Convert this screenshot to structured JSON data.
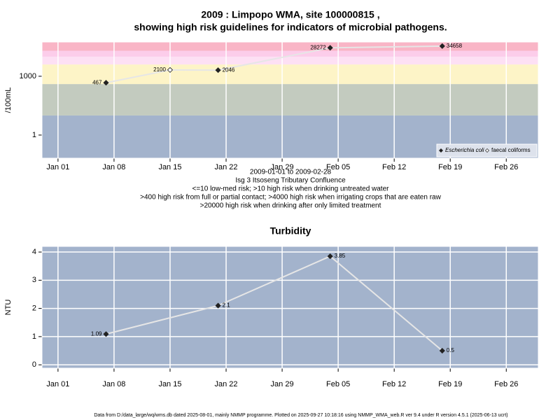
{
  "chart_data": [
    {
      "type": "line",
      "title": [
        "2009 : Limpopo WMA, site 100000815 ,",
        "showing high risk guidelines for indicators of microbial pathogens."
      ],
      "y_label": "/100mL",
      "yscale": "log",
      "ylim": [
        0.066,
        56000
      ],
      "yticks": [
        1,
        1000
      ],
      "xlim": [
        "2008-12-30",
        "2009-03-02"
      ],
      "xticks": [
        {
          "value": "2009-01-01",
          "label": "Jan 01"
        },
        {
          "value": "2009-01-08",
          "label": "Jan 08"
        },
        {
          "value": "2009-01-15",
          "label": "Jan 15"
        },
        {
          "value": "2009-01-22",
          "label": "Jan 22"
        },
        {
          "value": "2009-01-29",
          "label": "Jan 29"
        },
        {
          "value": "2009-02-05",
          "label": "Feb 05"
        },
        {
          "value": "2009-02-12",
          "label": "Feb 12"
        },
        {
          "value": "2009-02-19",
          "label": "Feb 19"
        },
        {
          "value": "2009-02-26",
          "label": "Feb 26"
        }
      ],
      "grid": "x",
      "thresholds": [
        10,
        400,
        4000,
        10000,
        20000
      ],
      "band_colors": [
        "#a3b3cc",
        "#c3cbbf",
        "#fdf4c7",
        "#fde0f4",
        "#fccdea",
        "#f9b5c6"
      ],
      "line_color": "#e6e6e6",
      "series": [
        {
          "name": "Escherichia coli",
          "marker": "filled",
          "x": [
            "2009-01-07",
            "2009-01-21",
            "2009-02-04",
            "2009-02-18"
          ],
          "values": [
            467,
            2046,
            28272,
            34658
          ]
        },
        {
          "name": "faecal coliforms",
          "marker": "open",
          "x": [
            "2009-01-15"
          ],
          "values": [
            2100
          ]
        }
      ],
      "legend": "bottom right",
      "caption": [
        "2009-01-01 to 2009-02-28",
        "Isg 3 Itsoseng Tributary Confluence",
        "<=10 low-med risk; >10 high risk when drinking untreated water",
        ">400 high risk from full or partial contact; >4000 high risk when irrigating crops that are eaten raw",
        ">20000 high risk when drinking after only limited treatment"
      ]
    },
    {
      "type": "line",
      "title": [
        "Turbidity"
      ],
      "y_label": "NTU",
      "ylim": [
        -0.12,
        4.2
      ],
      "yticks": [
        0,
        1,
        2,
        3,
        4
      ],
      "xlim": [
        "2008-12-30",
        "2009-03-02"
      ],
      "xticks": [
        {
          "value": "2009-01-01",
          "label": "Jan 01"
        },
        {
          "value": "2009-01-08",
          "label": "Jan 08"
        },
        {
          "value": "2009-01-15",
          "label": "Jan 15"
        },
        {
          "value": "2009-01-22",
          "label": "Jan 22"
        },
        {
          "value": "2009-01-29",
          "label": "Jan 29"
        },
        {
          "value": "2009-02-05",
          "label": "Feb 05"
        },
        {
          "value": "2009-02-12",
          "label": "Feb 12"
        },
        {
          "value": "2009-02-19",
          "label": "Feb 19"
        },
        {
          "value": "2009-02-26",
          "label": "Feb 26"
        }
      ],
      "grid": "both",
      "background": "#a3b3cc",
      "line_color": "#e6e6e6",
      "x": [
        "2009-01-07",
        "2009-01-21",
        "2009-02-04",
        "2009-02-18"
      ],
      "values": [
        1.09,
        2.1,
        3.85,
        0.5
      ]
    }
  ],
  "footer": "Data from D:/data_large/wq/wms.db dated 2025-08-01, mainly NMMP programme. Plotted on 2025-09-27 10:18:16 using NMMP_WMA_web.R ver 9.4 under R version 4.5.1 (2025-06-13 ucrt)"
}
